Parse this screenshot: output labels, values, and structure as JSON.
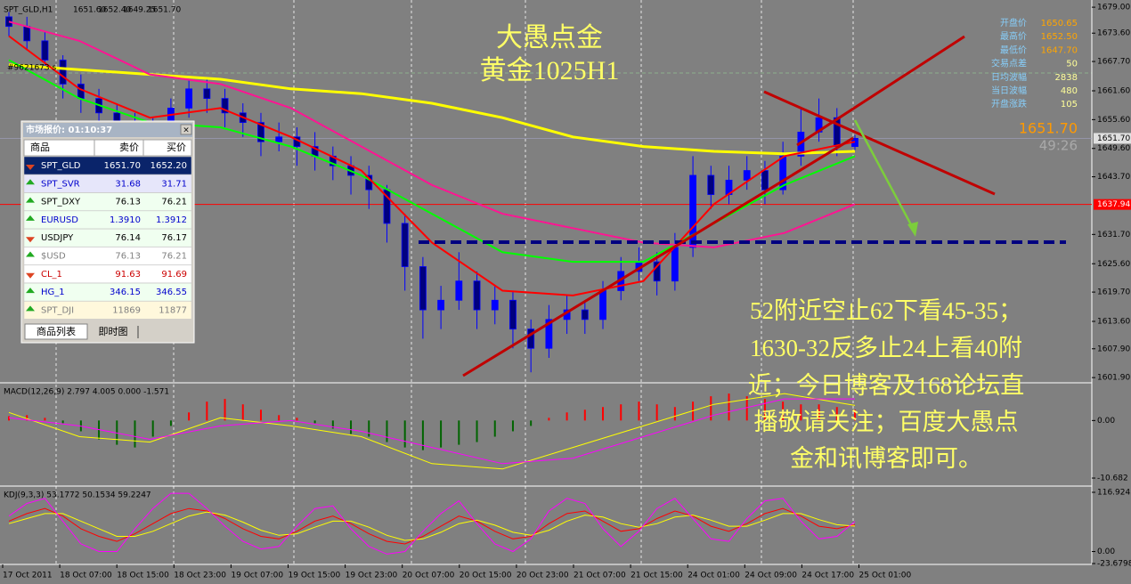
{
  "header": {
    "symbol": "SPT_GLD,H1",
    "quote": [
      "1651.60",
      "1652.40",
      "1649.25",
      "1651.70"
    ],
    "account": "#9621673 s"
  },
  "title": [
    "大愚点金",
    "黄金1025H1"
  ],
  "comment": [
    "52附近空止62下看45-35；",
    "1630-32反多止24上看40附",
    "近；今日博客及168论坛直",
    "播敬请关注；百度大愚点",
    "金和讯博客即可。"
  ],
  "info": [
    [
      "开盘价",
      "1650.65"
    ],
    [
      "最高价",
      "1652.50"
    ],
    [
      "最低价",
      "1647.70"
    ],
    [
      "交易点差",
      "50"
    ],
    [
      "日均波幅",
      "2838"
    ],
    [
      "当日波幅",
      "480"
    ],
    [
      "开盘涨跌",
      "105"
    ]
  ],
  "live": {
    "price": "1651.70",
    "countdown": "49:26"
  },
  "price_chart": {
    "up_color": "#0000ff",
    "down_color": "#000080",
    "candles": [
      [
        1677,
        1678,
        1673,
        1675
      ],
      [
        1675,
        1677,
        1670,
        1672
      ],
      [
        1672,
        1674,
        1666,
        1668
      ],
      [
        1668,
        1669,
        1660,
        1663
      ],
      [
        1663,
        1665,
        1657,
        1660
      ],
      [
        1660,
        1662,
        1655,
        1657
      ],
      [
        1657,
        1659,
        1652,
        1655
      ],
      [
        1655,
        1657,
        1648,
        1651
      ],
      [
        1651,
        1656,
        1649,
        1654
      ],
      [
        1654,
        1660,
        1652,
        1658
      ],
      [
        1658,
        1664,
        1656,
        1662
      ],
      [
        1662,
        1664,
        1657,
        1660
      ],
      [
        1660,
        1662,
        1654,
        1657
      ],
      [
        1657,
        1659,
        1652,
        1655
      ],
      [
        1655,
        1657,
        1648,
        1651
      ],
      [
        1651,
        1655,
        1649,
        1652
      ],
      [
        1652,
        1654,
        1646,
        1650
      ],
      [
        1650,
        1653,
        1645,
        1648
      ],
      [
        1648,
        1650,
        1643,
        1646
      ],
      [
        1646,
        1648,
        1640,
        1644
      ],
      [
        1644,
        1646,
        1637,
        1641
      ],
      [
        1641,
        1642,
        1630,
        1634
      ],
      [
        1634,
        1636,
        1620,
        1625
      ],
      [
        1625,
        1627,
        1610,
        1616
      ],
      [
        1616,
        1621,
        1612,
        1618
      ],
      [
        1618,
        1628,
        1616,
        1622
      ],
      [
        1622,
        1624,
        1612,
        1616
      ],
      [
        1616,
        1621,
        1613,
        1618
      ],
      [
        1618,
        1620,
        1608,
        1612
      ],
      [
        1612,
        1614,
        1603,
        1608
      ],
      [
        1608,
        1617,
        1606,
        1614
      ],
      [
        1614,
        1619,
        1611,
        1616
      ],
      [
        1616,
        1618,
        1611,
        1614
      ],
      [
        1614,
        1622,
        1612,
        1620
      ],
      [
        1620,
        1627,
        1618,
        1624
      ],
      [
        1624,
        1629,
        1622,
        1626
      ],
      [
        1626,
        1628,
        1619,
        1622
      ],
      [
        1622,
        1632,
        1620,
        1629
      ],
      [
        1629,
        1648,
        1627,
        1644
      ],
      [
        1644,
        1646,
        1637,
        1640
      ],
      [
        1640,
        1646,
        1638,
        1643
      ],
      [
        1643,
        1648,
        1641,
        1645
      ],
      [
        1645,
        1647,
        1638,
        1641
      ],
      [
        1641,
        1651,
        1640,
        1648
      ],
      [
        1648,
        1658,
        1646,
        1653
      ],
      [
        1653,
        1660,
        1651,
        1656
      ],
      [
        1656,
        1658,
        1648,
        1650
      ],
      [
        1650,
        1652.4,
        1649.25,
        1651.7
      ]
    ],
    "ma": [
      {
        "color": "#ffff00",
        "values": [
          1667,
          1666,
          1665,
          1664,
          1662,
          1661,
          1659,
          1656,
          1652,
          1650,
          1649,
          1648.5,
          1649
        ]
      },
      {
        "color": "#00ff00",
        "values": [
          1668,
          1660,
          1655,
          1654,
          1650,
          1644,
          1636,
          1628,
          1626,
          1626,
          1634,
          1642,
          1648
        ]
      },
      {
        "color": "#ff0000",
        "values": [
          1673,
          1662,
          1656,
          1658,
          1652,
          1645,
          1630,
          1620,
          1619,
          1622,
          1638,
          1648,
          1651
        ]
      },
      {
        "color": "#ff1493",
        "values": [
          1676,
          1672,
          1665,
          1663,
          1658,
          1650,
          1642,
          1636,
          1633,
          1630,
          1629,
          1632,
          1638
        ]
      }
    ],
    "ylim": [
      1601.0,
      1680.5
    ],
    "yticks": [
      {
        "value": 1679,
        "label": "1679.00"
      },
      {
        "value": 1673.6,
        "label": "1673.60"
      },
      {
        "value": 1667.7,
        "label": "1667.70"
      },
      {
        "value": 1661.6,
        "label": "1661.60"
      },
      {
        "value": 1655.6,
        "label": "1655.60"
      },
      {
        "value": 1649.6,
        "label": "1649.60"
      },
      {
        "value": 1643.7,
        "label": "1643.70"
      },
      {
        "value": 1631.7,
        "label": "1631.70"
      },
      {
        "value": 1625.6,
        "label": "1625.60"
      },
      {
        "value": 1619.7,
        "label": "1619.70"
      },
      {
        "value": 1613.6,
        "label": "1613.60"
      },
      {
        "value": 1607.9,
        "label": "1607.90"
      },
      {
        "value": 1601.9,
        "label": "1601.90"
      }
    ],
    "bid_tag": {
      "value": 1651.7,
      "label": "1651.70"
    },
    "alert_line": {
      "value": 1637.94,
      "label": "1637.94"
    }
  },
  "macd": {
    "label": "MACD(12,26,9) 2.797 4.005 0.000 -1.571",
    "hist": [
      0.8,
      1.0,
      0.5,
      -0.5,
      -2,
      -3.5,
      -4.5,
      -5,
      -3,
      -1,
      1.5,
      3.5,
      4,
      3,
      2,
      1,
      0.5,
      -0.5,
      -1.5,
      -2.5,
      -3,
      -4,
      -5,
      -5.5,
      -5,
      -4.5,
      -4,
      -3,
      -2,
      -1,
      0.5,
      1.5,
      2,
      2.5,
      3,
      3.5,
      3,
      2.5,
      3.5,
      4.5,
      5,
      4.5,
      4,
      3.5,
      3,
      3,
      2.5,
      2
    ],
    "lines": [
      {
        "color": "#ffff00",
        "values": [
          1.5,
          -3,
          -4,
          0.5,
          -1,
          -3,
          -8,
          -9,
          -5,
          -1,
          3,
          5,
          2.797
        ]
      },
      {
        "color": "#ff00ff",
        "values": [
          0.5,
          -1,
          -3.5,
          -1,
          0,
          -2,
          -5,
          -8,
          -7,
          -3,
          1,
          4,
          4.005
        ]
      }
    ],
    "ylim": [
      -12,
      6.5
    ],
    "yticks": [
      {
        "value": 0,
        "label": "0.00"
      },
      {
        "value": -10.682,
        "label": "-10.682"
      }
    ]
  },
  "kdj": {
    "label": "KDJ(9,3,3) 53.1772 50.1534 59.2247",
    "lines": [
      {
        "color": "#ff0000",
        "values": [
          60,
          75,
          85,
          70,
          45,
          30,
          20,
          35,
          55,
          75,
          85,
          80,
          65,
          45,
          30,
          25,
          40,
          60,
          70,
          55,
          35,
          20,
          15,
          30,
          50,
          70,
          60,
          40,
          25,
          30,
          55,
          75,
          80,
          60,
          40,
          45,
          65,
          80,
          70,
          50,
          40,
          55,
          75,
          85,
          70,
          50,
          45,
          53.1772
        ]
      },
      {
        "color": "#ffff00",
        "values": [
          55,
          65,
          75,
          75,
          60,
          45,
          30,
          30,
          40,
          55,
          70,
          78,
          72,
          58,
          42,
          32,
          35,
          48,
          60,
          60,
          48,
          32,
          22,
          25,
          38,
          55,
          62,
          52,
          38,
          32,
          42,
          60,
          72,
          68,
          55,
          48,
          55,
          68,
          72,
          62,
          50,
          50,
          62,
          75,
          75,
          63,
          53,
          50.1534
        ]
      },
      {
        "color": "#ff00ff",
        "values": [
          70,
          95,
          105,
          60,
          15,
          0,
          0,
          45,
          85,
          115,
          115,
          85,
          50,
          20,
          5,
          10,
          50,
          85,
          90,
          45,
          10,
          -5,
          0,
          40,
          75,
          100,
          55,
          15,
          0,
          25,
          80,
          105,
          95,
          45,
          10,
          40,
          85,
          105,
          65,
          25,
          20,
          65,
          100,
          105,
          60,
          25,
          30,
          59.2247
        ]
      }
    ],
    "ylim": [
      -23.6798,
      116.9245
    ],
    "yticks": [
      {
        "value": 116.9245,
        "label": "116.9245"
      },
      {
        "value": 0,
        "label": "0.00"
      },
      {
        "value": -23.6798,
        "label": "-23.6798"
      }
    ]
  },
  "dates": [
    "17 Oct 2011",
    "18 Oct 07:00",
    "18 Oct 15:00",
    "18 Oct 23:00",
    "19 Oct 07:00",
    "19 Oct 15:00",
    "19 Oct 23:00",
    "20 Oct 07:00",
    "20 Oct 15:00",
    "20 Oct 23:00",
    "21 Oct 07:00",
    "21 Oct 15:00",
    "24 Oct 01:00",
    "24 Oct 09:00",
    "24 Oct 17:00",
    "25 Oct 01:00"
  ],
  "market_watch": {
    "title": "市场报价: 01:10:37",
    "headers": [
      "商品",
      "卖价",
      "买价"
    ],
    "rows": [
      {
        "symbol": "SPT_GLD",
        "bid": "1651.70",
        "ask": "1652.20",
        "trend": "down"
      },
      {
        "symbol": "SPT_SVR",
        "bid": "31.68",
        "ask": "31.71",
        "trend": "up"
      },
      {
        "symbol": "SPT_DXY",
        "bid": "76.13",
        "ask": "76.21",
        "trend": "up"
      },
      {
        "symbol": "EURUSD",
        "bid": "1.3910",
        "ask": "1.3912",
        "trend": "up"
      },
      {
        "symbol": "USDJPY",
        "bid": "76.14",
        "ask": "76.17",
        "trend": "down"
      },
      {
        "symbol": "$USD",
        "bid": "76.13",
        "ask": "76.21",
        "trend": "up"
      },
      {
        "symbol": "CL_1",
        "bid": "91.63",
        "ask": "91.69",
        "trend": "down"
      },
      {
        "symbol": "HG_1",
        "bid": "346.15",
        "ask": "346.55",
        "trend": "up"
      },
      {
        "symbol": "SPT_DJI",
        "bid": "11869",
        "ask": "11877",
        "trend": "up"
      }
    ],
    "tabs": [
      "商品列表",
      "即时图"
    ]
  }
}
